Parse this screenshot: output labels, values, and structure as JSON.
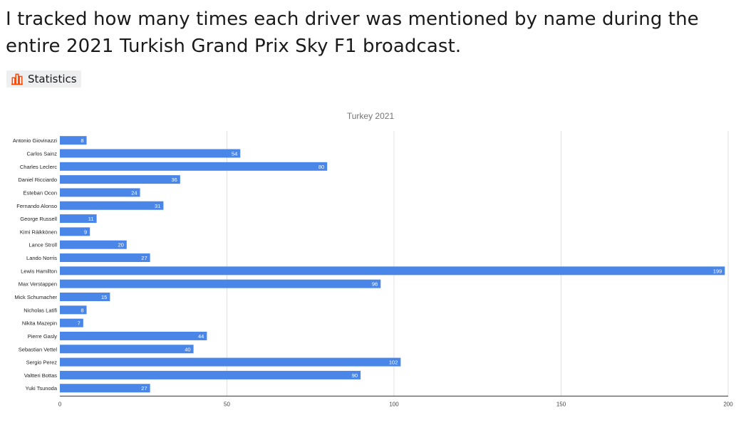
{
  "post": {
    "title": "I tracked how many times each driver was mentioned by name during the entire 2021 Turkish Grand Prix Sky F1 broadcast.",
    "flair": "Statistics",
    "flair_icon": "bar-chart-icon",
    "flair_icon_color": "#ff4500"
  },
  "chart_data": {
    "type": "bar",
    "orientation": "horizontal",
    "title": "Turkey 2021",
    "xlabel": "",
    "ylabel": "",
    "xlim": [
      0,
      200
    ],
    "xticks": [
      0,
      50,
      100,
      150,
      200
    ],
    "grid": true,
    "legend": "none",
    "bar_color": "#4a86e8",
    "data_labels": true,
    "categories": [
      "Antonio Giovinazzi",
      "Carlos Sainz",
      "Charles Leclerc",
      "Daniel Ricciardo",
      "Esteban Ocon",
      "Fernando Alonso",
      "George Russell",
      "Kimi Räikkönen",
      "Lance Stroll",
      "Lando Norris",
      "Lewis Hamilton",
      "Max Verstappen",
      "Mick Schumacher",
      "Nicholas Latifi",
      "Nikita Mazepin",
      "Pierre Gasly",
      "Sebastian Vettel",
      "Sergio Perez",
      "Valtteri Bottas",
      "Yuki Tsunoda"
    ],
    "values": [
      8,
      54,
      80,
      36,
      24,
      31,
      11,
      9,
      20,
      27,
      199,
      96,
      15,
      8,
      7,
      44,
      40,
      102,
      90,
      27
    ]
  }
}
